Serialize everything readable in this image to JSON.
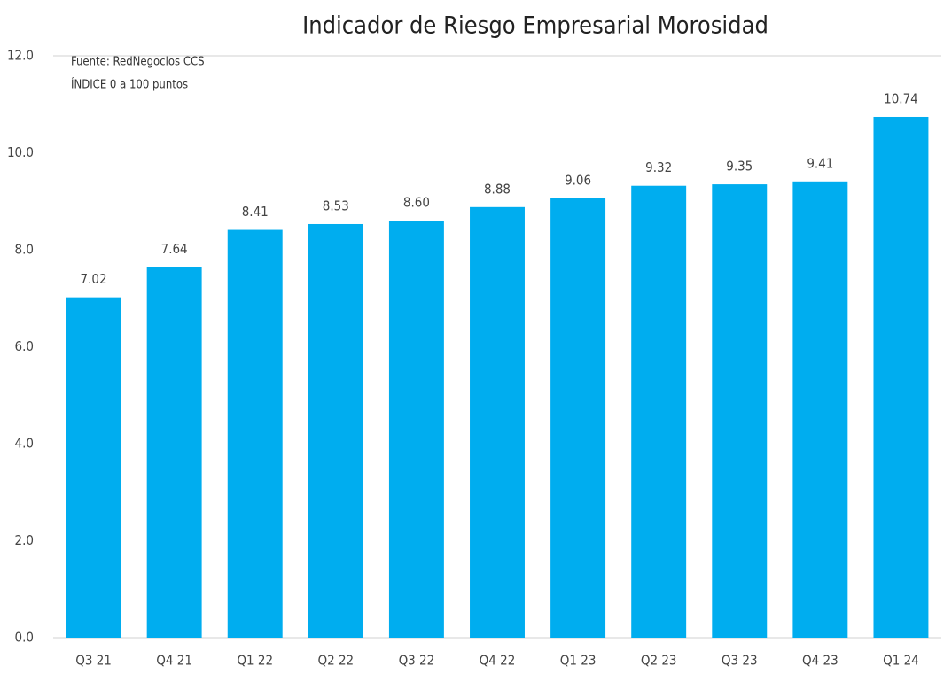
{
  "chart_data": {
    "type": "bar",
    "title": "Indicador de Riesgo Empresarial Morosidad",
    "annotations": [
      "Fuente: RedNegocios CCS",
      "ÍNDICE 0 a 100  puntos"
    ],
    "categories": [
      "Q3 21",
      "Q4 21",
      "Q1 22",
      "Q2 22",
      "Q3 22",
      "Q4 22",
      "Q1 23",
      "Q2 23",
      "Q3 23",
      "Q4 23",
      "Q1 24"
    ],
    "values": [
      7.02,
      7.64,
      8.41,
      8.53,
      8.6,
      8.88,
      9.06,
      9.32,
      9.35,
      9.41,
      10.74
    ],
    "value_labels": [
      "7.02",
      "7.64",
      "8.41",
      "8.53",
      "8.60",
      "8.88",
      "9.06",
      "9.32",
      "9.35",
      "9.41",
      "10.74"
    ],
    "color": "#00adef",
    "ylim": [
      0,
      12
    ],
    "yticks": [
      {
        "value": 0,
        "label": "0.0"
      },
      {
        "value": 2,
        "label": "2.0"
      },
      {
        "value": 4,
        "label": "4.0"
      },
      {
        "value": 6,
        "label": "6.0"
      },
      {
        "value": 8,
        "label": "8.0"
      },
      {
        "value": 10,
        "label": "10.0"
      },
      {
        "value": 12,
        "label": "12.0"
      }
    ],
    "grid": false
  }
}
